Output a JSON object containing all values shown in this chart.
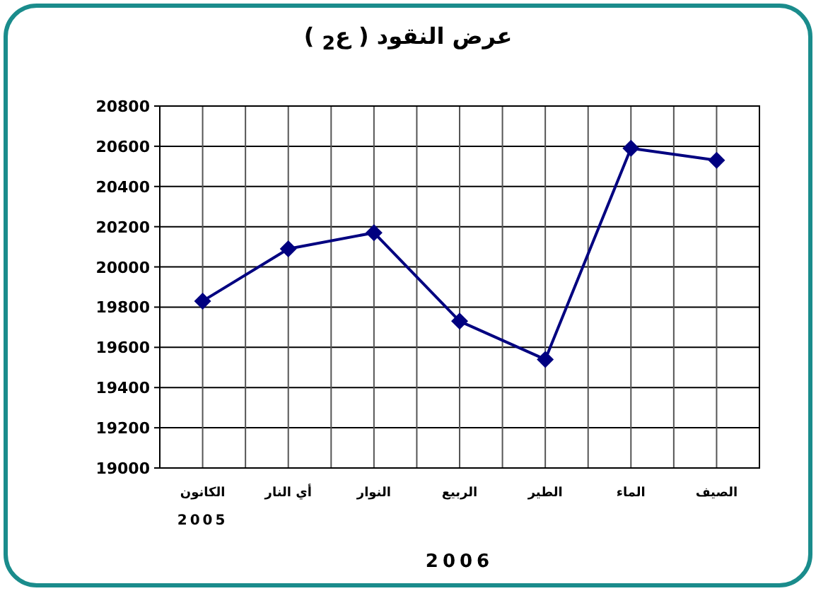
{
  "chart_data": {
    "type": "line",
    "title": "عرض النقود ( ع$_{2}$ )",
    "xlabel": "2006",
    "categories": [
      "الكانون",
      "أي النار",
      "النوار",
      "الربيع",
      "الطير",
      "الماء",
      "الصيف"
    ],
    "series": [
      {
        "color": "#000080",
        "values": [
          19830,
          20090,
          20170,
          19730,
          19540,
          20590,
          20530
        ]
      }
    ],
    "ylim": [
      19000,
      20800
    ],
    "yticks": [
      19000,
      19200,
      19400,
      19600,
      19800,
      20000,
      20200,
      20400,
      20600,
      20800
    ],
    "grid": true,
    "marker": "diamond",
    "line_style": "solid",
    "annotations": [
      "2005"
    ]
  }
}
